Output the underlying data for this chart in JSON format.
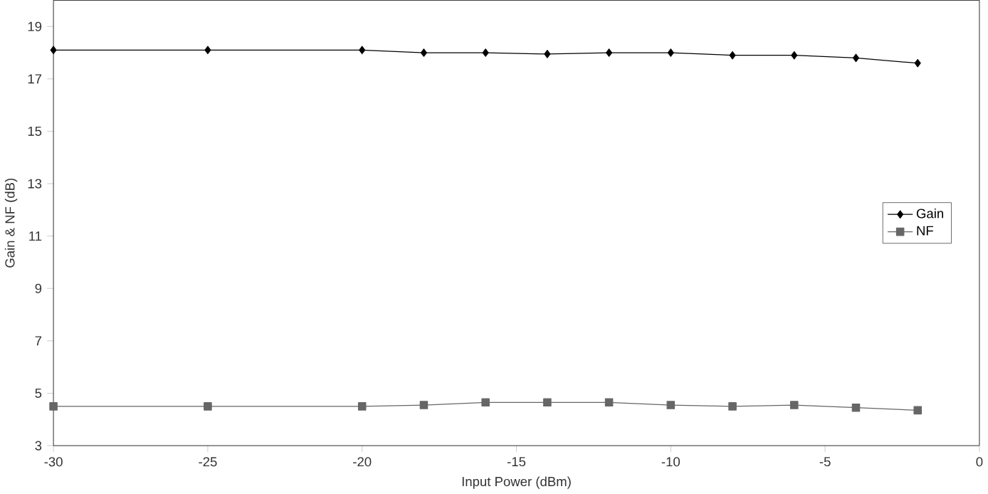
{
  "chart_data": {
    "type": "line",
    "xlabel": "Input Power (dBm)",
    "ylabel": "Gain & NF (dB)",
    "x": [
      -30,
      -25,
      -20,
      -18,
      -16,
      -14,
      -12,
      -10,
      -8,
      -6,
      -4,
      -2
    ],
    "series": [
      {
        "name": "Gain",
        "color": "#000000",
        "marker": "diamond",
        "values": [
          18.1,
          18.1,
          18.1,
          18.0,
          18.0,
          17.95,
          18.0,
          18.0,
          17.9,
          17.9,
          17.8,
          17.6
        ]
      },
      {
        "name": "NF",
        "color": "#666666",
        "marker": "square",
        "values": [
          4.5,
          4.5,
          4.5,
          4.55,
          4.65,
          4.65,
          4.65,
          4.55,
          4.5,
          4.55,
          4.45,
          4.35
        ]
      }
    ],
    "xlim": [
      -30,
      0
    ],
    "xticks": [
      -30,
      -25,
      -20,
      -15,
      -10,
      -5,
      0
    ],
    "ylim": [
      3,
      20
    ],
    "yticks": [
      3,
      5,
      7,
      9,
      11,
      13,
      15,
      17,
      19
    ],
    "grid": false,
    "legend": "right"
  }
}
